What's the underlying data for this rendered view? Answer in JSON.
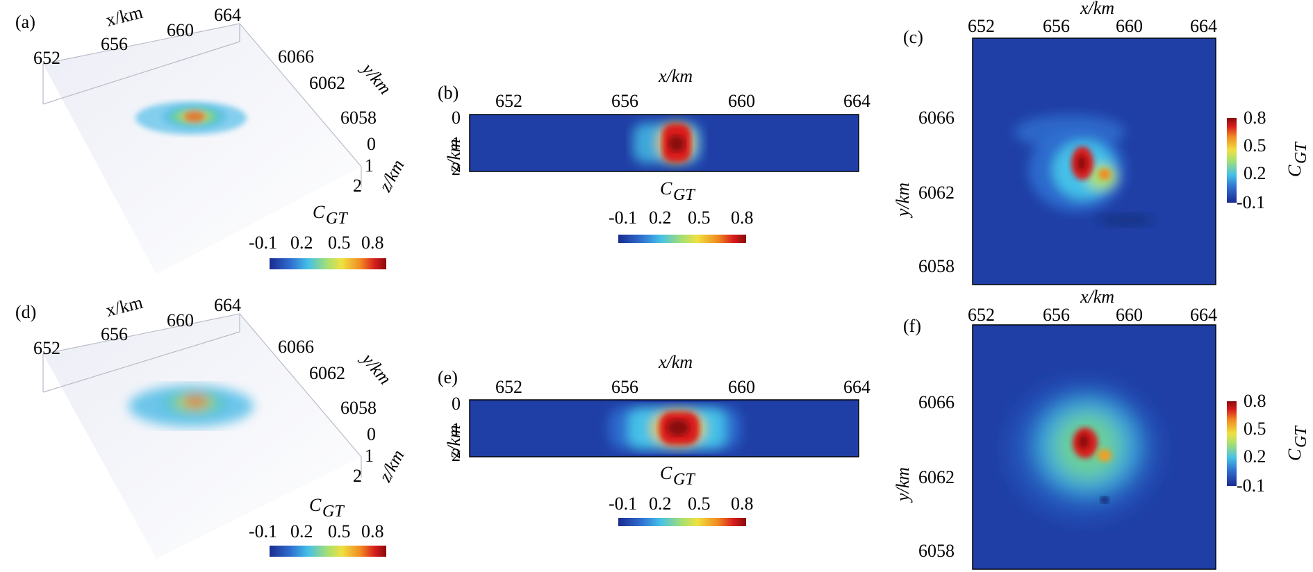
{
  "figure": {
    "panels": [
      {
        "letter": "(a)",
        "kind": "3d",
        "x_axis": {
          "label": "x/km",
          "ticks": [
            "652",
            "656",
            "660",
            "664"
          ]
        },
        "y_axis": {
          "label": "y/km",
          "ticks": [
            "6066",
            "6062",
            "6058"
          ]
        },
        "z_axis": {
          "label": "z/km",
          "ticks": [
            "0",
            "1",
            "2"
          ]
        },
        "colorbar": {
          "label": "C",
          "sub": "GT",
          "ticks": [
            "-0.1",
            "0.2",
            "0.5",
            "0.8"
          ]
        }
      },
      {
        "letter": "(b)",
        "kind": "xz-slice",
        "x_axis": {
          "label": "x/km",
          "ticks": [
            "652",
            "656",
            "660",
            "664"
          ]
        },
        "z_axis": {
          "label": "z/km",
          "ticks": [
            "0",
            "1",
            "2"
          ]
        },
        "colorbar": {
          "label": "C",
          "sub": "GT",
          "ticks": [
            "-0.1",
            "0.2",
            "0.5",
            "0.8"
          ]
        }
      },
      {
        "letter": "(c)",
        "kind": "xy-map",
        "x_axis": {
          "label": "x/km",
          "ticks": [
            "652",
            "656",
            "660",
            "664"
          ]
        },
        "y_axis": {
          "label": "y/km",
          "ticks": [
            "6066",
            "6062",
            "6058"
          ]
        },
        "colorbar": {
          "label": "C",
          "sub": "GT",
          "ticks": [
            "0.8",
            "0.5",
            "0.2",
            "-0.1"
          ]
        }
      },
      {
        "letter": "(d)",
        "kind": "3d",
        "x_axis": {
          "label": "x/km",
          "ticks": [
            "652",
            "656",
            "660",
            "664"
          ]
        },
        "y_axis": {
          "label": "y/km",
          "ticks": [
            "6066",
            "6062",
            "6058"
          ]
        },
        "z_axis": {
          "label": "z/km",
          "ticks": [
            "0",
            "1",
            "2"
          ]
        },
        "colorbar": {
          "label": "C",
          "sub": "GT",
          "ticks": [
            "-0.1",
            "0.2",
            "0.5",
            "0.8"
          ]
        }
      },
      {
        "letter": "(e)",
        "kind": "xz-slice",
        "x_axis": {
          "label": "x/km",
          "ticks": [
            "652",
            "656",
            "660",
            "664"
          ]
        },
        "z_axis": {
          "label": "z/km",
          "ticks": [
            "0",
            "1",
            "2"
          ]
        },
        "colorbar": {
          "label": "C",
          "sub": "GT",
          "ticks": [
            "-0.1",
            "0.2",
            "0.5",
            "0.8"
          ]
        }
      },
      {
        "letter": "(f)",
        "kind": "xy-map",
        "x_axis": {
          "label": "x/km",
          "ticks": [
            "652",
            "656",
            "660",
            "664"
          ]
        },
        "y_axis": {
          "label": "y/km",
          "ticks": [
            "6066",
            "6062",
            "6058"
          ]
        },
        "colorbar": {
          "label": "C",
          "sub": "GT",
          "ticks": [
            "0.8",
            "0.5",
            "0.2",
            "-0.1"
          ]
        }
      }
    ],
    "colors": {
      "background_blue": "#1f3fa6",
      "colormap": [
        "#1a2b8f",
        "#2f6fd0",
        "#45c0e8",
        "#a8e070",
        "#f0e040",
        "#f08a20",
        "#d81e1e",
        "#8a0a0a"
      ]
    }
  }
}
